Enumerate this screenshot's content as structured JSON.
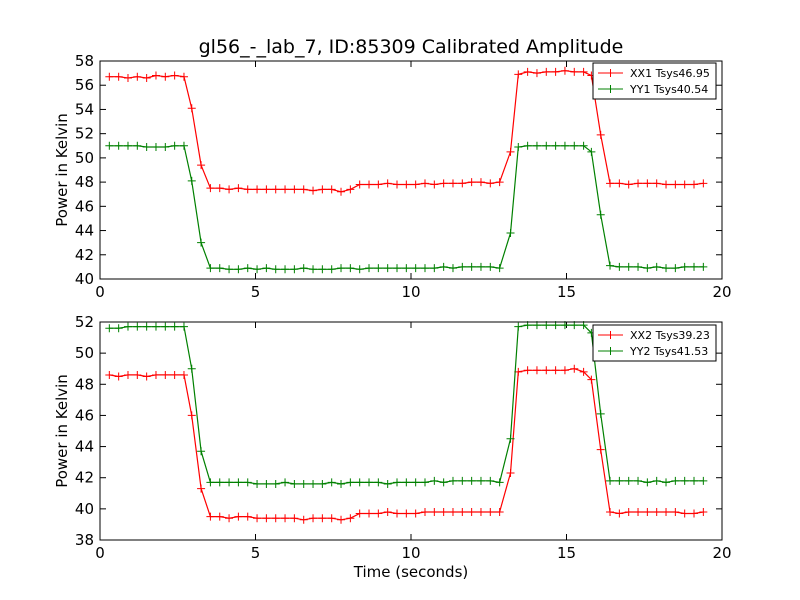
{
  "figure": {
    "background": "#ffffff"
  },
  "chart_data": [
    {
      "type": "line",
      "title": "gl56_-_lab_7, ID:85309 Calibrated Amplitude",
      "xlabel": "",
      "ylabel": "Power in Kelvin",
      "xlim": [
        0,
        20
      ],
      "ylim": [
        40,
        58
      ],
      "xticks": [
        "0",
        "5",
        "10",
        "15",
        "20"
      ],
      "yticks": [
        "40",
        "42",
        "44",
        "46",
        "48",
        "50",
        "52",
        "54",
        "56",
        "58"
      ],
      "grid": false,
      "legend_position": "top-right",
      "x": [
        0.3,
        0.6,
        0.9,
        1.2,
        1.5,
        1.8,
        2.1,
        2.4,
        2.7,
        2.95,
        3.25,
        3.55,
        3.85,
        4.15,
        4.45,
        4.75,
        5.05,
        5.35,
        5.65,
        5.95,
        6.25,
        6.55,
        6.85,
        7.15,
        7.45,
        7.75,
        8.05,
        8.35,
        8.65,
        8.95,
        9.25,
        9.55,
        9.85,
        10.15,
        10.45,
        10.75,
        11.05,
        11.35,
        11.65,
        11.95,
        12.25,
        12.55,
        12.85,
        13.2,
        13.45,
        13.75,
        14.05,
        14.35,
        14.65,
        14.95,
        15.25,
        15.55,
        15.8,
        16.1,
        16.4,
        16.7,
        17.0,
        17.3,
        17.6,
        17.9,
        18.2,
        18.5,
        18.8,
        19.1,
        19.4
      ],
      "series": [
        {
          "name": "XX1 Tsys46.95",
          "color": "#ff0000",
          "values": [
            56.7,
            56.7,
            56.6,
            56.7,
            56.6,
            56.8,
            56.7,
            56.8,
            56.7,
            54.1,
            49.4,
            47.5,
            47.5,
            47.4,
            47.5,
            47.4,
            47.4,
            47.4,
            47.4,
            47.4,
            47.4,
            47.4,
            47.3,
            47.4,
            47.4,
            47.2,
            47.4,
            47.8,
            47.8,
            47.8,
            47.9,
            47.8,
            47.8,
            47.8,
            47.9,
            47.8,
            47.9,
            47.9,
            47.9,
            48.0,
            48.0,
            47.9,
            48.0,
            50.5,
            56.9,
            57.1,
            57.0,
            57.1,
            57.1,
            57.2,
            57.1,
            57.1,
            56.8,
            51.9,
            47.9,
            47.9,
            47.8,
            47.9,
            47.9,
            47.9,
            47.8,
            47.8,
            47.8,
            47.8,
            47.9
          ]
        },
        {
          "name": "YY1 Tsys40.54",
          "color": "#008000",
          "values": [
            51.0,
            51.0,
            51.0,
            51.0,
            50.9,
            50.9,
            50.9,
            51.0,
            51.0,
            48.1,
            43.0,
            40.9,
            40.9,
            40.8,
            40.8,
            40.9,
            40.8,
            40.9,
            40.8,
            40.8,
            40.8,
            40.9,
            40.8,
            40.8,
            40.8,
            40.9,
            40.9,
            40.8,
            40.9,
            40.9,
            40.9,
            40.9,
            40.9,
            40.9,
            40.9,
            40.9,
            41.0,
            40.9,
            41.0,
            41.0,
            41.0,
            41.0,
            40.9,
            43.8,
            50.9,
            51.0,
            51.0,
            51.0,
            51.0,
            51.0,
            51.0,
            51.0,
            50.5,
            45.3,
            41.1,
            41.0,
            41.0,
            41.0,
            40.9,
            41.0,
            40.9,
            40.9,
            41.0,
            41.0,
            41.0
          ]
        }
      ]
    },
    {
      "type": "line",
      "title": "",
      "xlabel": "Time (seconds)",
      "ylabel": "Power in Kelvin",
      "xlim": [
        0,
        20
      ],
      "ylim": [
        38,
        52
      ],
      "xticks": [
        "0",
        "5",
        "10",
        "15",
        "20"
      ],
      "yticks": [
        "38",
        "40",
        "42",
        "44",
        "46",
        "48",
        "50",
        "52"
      ],
      "grid": false,
      "legend_position": "top-right",
      "x": [
        0.3,
        0.6,
        0.9,
        1.2,
        1.5,
        1.8,
        2.1,
        2.4,
        2.7,
        2.95,
        3.25,
        3.55,
        3.85,
        4.15,
        4.45,
        4.75,
        5.05,
        5.35,
        5.65,
        5.95,
        6.25,
        6.55,
        6.85,
        7.15,
        7.45,
        7.75,
        8.05,
        8.35,
        8.65,
        8.95,
        9.25,
        9.55,
        9.85,
        10.15,
        10.45,
        10.75,
        11.05,
        11.35,
        11.65,
        11.95,
        12.25,
        12.55,
        12.85,
        13.2,
        13.45,
        13.75,
        14.05,
        14.35,
        14.65,
        14.95,
        15.25,
        15.55,
        15.8,
        16.1,
        16.4,
        16.7,
        17.0,
        17.3,
        17.6,
        17.9,
        18.2,
        18.5,
        18.8,
        19.1,
        19.4
      ],
      "series": [
        {
          "name": "XX2 Tsys39.23",
          "color": "#ff0000",
          "values": [
            48.6,
            48.5,
            48.6,
            48.6,
            48.5,
            48.6,
            48.6,
            48.6,
            48.6,
            46.0,
            41.3,
            39.5,
            39.5,
            39.4,
            39.5,
            39.5,
            39.4,
            39.4,
            39.4,
            39.4,
            39.4,
            39.3,
            39.4,
            39.4,
            39.4,
            39.3,
            39.4,
            39.7,
            39.7,
            39.7,
            39.8,
            39.7,
            39.7,
            39.7,
            39.8,
            39.8,
            39.8,
            39.8,
            39.8,
            39.8,
            39.8,
            39.8,
            39.8,
            42.3,
            48.8,
            48.9,
            48.9,
            48.9,
            48.9,
            48.9,
            49.0,
            48.8,
            48.3,
            43.8,
            39.8,
            39.7,
            39.8,
            39.8,
            39.8,
            39.8,
            39.8,
            39.8,
            39.7,
            39.7,
            39.8
          ]
        },
        {
          "name": "YY2 Tsys41.53",
          "color": "#008000",
          "values": [
            51.6,
            51.6,
            51.7,
            51.7,
            51.7,
            51.7,
            51.7,
            51.7,
            51.7,
            49.0,
            43.7,
            41.7,
            41.7,
            41.7,
            41.7,
            41.7,
            41.6,
            41.6,
            41.6,
            41.7,
            41.6,
            41.6,
            41.6,
            41.6,
            41.7,
            41.6,
            41.7,
            41.7,
            41.7,
            41.7,
            41.6,
            41.7,
            41.7,
            41.7,
            41.7,
            41.8,
            41.7,
            41.8,
            41.8,
            41.8,
            41.8,
            41.8,
            41.7,
            44.5,
            51.7,
            51.8,
            51.8,
            51.8,
            51.8,
            51.8,
            51.8,
            51.8,
            51.3,
            46.1,
            41.8,
            41.8,
            41.8,
            41.8,
            41.7,
            41.8,
            41.7,
            41.8,
            41.8,
            41.8,
            41.8
          ]
        }
      ]
    }
  ]
}
